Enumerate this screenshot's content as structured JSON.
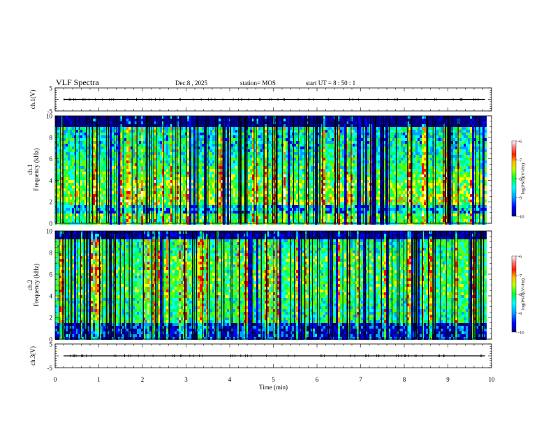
{
  "header": {
    "title": "VLF Spectra",
    "date": "Dec.8 , 2025",
    "station": "station= MOS",
    "start_ut": "start UT = 8 : 50 : 1"
  },
  "chart_data": {
    "type": "heatmap",
    "title": "VLF Spectra",
    "xlabel": "Time (min)",
    "xlim": [
      0,
      10
    ],
    "xticks": [
      "0",
      "1",
      "2",
      "3",
      "4",
      "5",
      "6",
      "7",
      "8",
      "9",
      "10"
    ],
    "data_end_min": 9.85,
    "panels": [
      {
        "name": "waveform-ch1",
        "type": "line",
        "ylabel": "ch.1(V)",
        "ylim": [
          -5,
          5
        ],
        "yticks": [
          "5",
          "-5"
        ],
        "baseline": 0
      },
      {
        "name": "spectrogram-ch1",
        "type": "heatmap",
        "ylabel": "ch.1\nFrequency (kHz)",
        "ylim": [
          0,
          10
        ],
        "yticks": [
          "0",
          "2",
          "4",
          "6",
          "8",
          "10"
        ],
        "colorbar": {
          "label": "log(PSD)(V²/Hz)",
          "range": [
            -10,
            -6
          ],
          "ticks": [
            "-6",
            "-7",
            "-8",
            "-9",
            "-10"
          ]
        }
      },
      {
        "name": "spectrogram-ch2",
        "type": "heatmap",
        "ylabel": "ch.2\nFrequency (kHz)",
        "ylim": [
          0,
          10
        ],
        "yticks": [
          "0",
          "2",
          "4",
          "6",
          "8",
          "10"
        ],
        "colorbar": {
          "label": "log(PSD)(V²/Hz)",
          "range": [
            -10,
            -6
          ],
          "ticks": [
            "-6",
            "-7",
            "-8",
            "-9",
            "-10"
          ]
        }
      },
      {
        "name": "waveform-ch3",
        "type": "line",
        "ylabel": "ch.3(V)",
        "ylim": [
          -5,
          5
        ],
        "yticks": [
          "5",
          "-5"
        ],
        "baseline": 0
      }
    ]
  },
  "colors": {
    "scale": [
      "#000080",
      "#0000ff",
      "#00a0ff",
      "#00ffff",
      "#00ff60",
      "#60ff00",
      "#ffff00",
      "#ff8000",
      "#ff0000",
      "#ffffff"
    ]
  }
}
